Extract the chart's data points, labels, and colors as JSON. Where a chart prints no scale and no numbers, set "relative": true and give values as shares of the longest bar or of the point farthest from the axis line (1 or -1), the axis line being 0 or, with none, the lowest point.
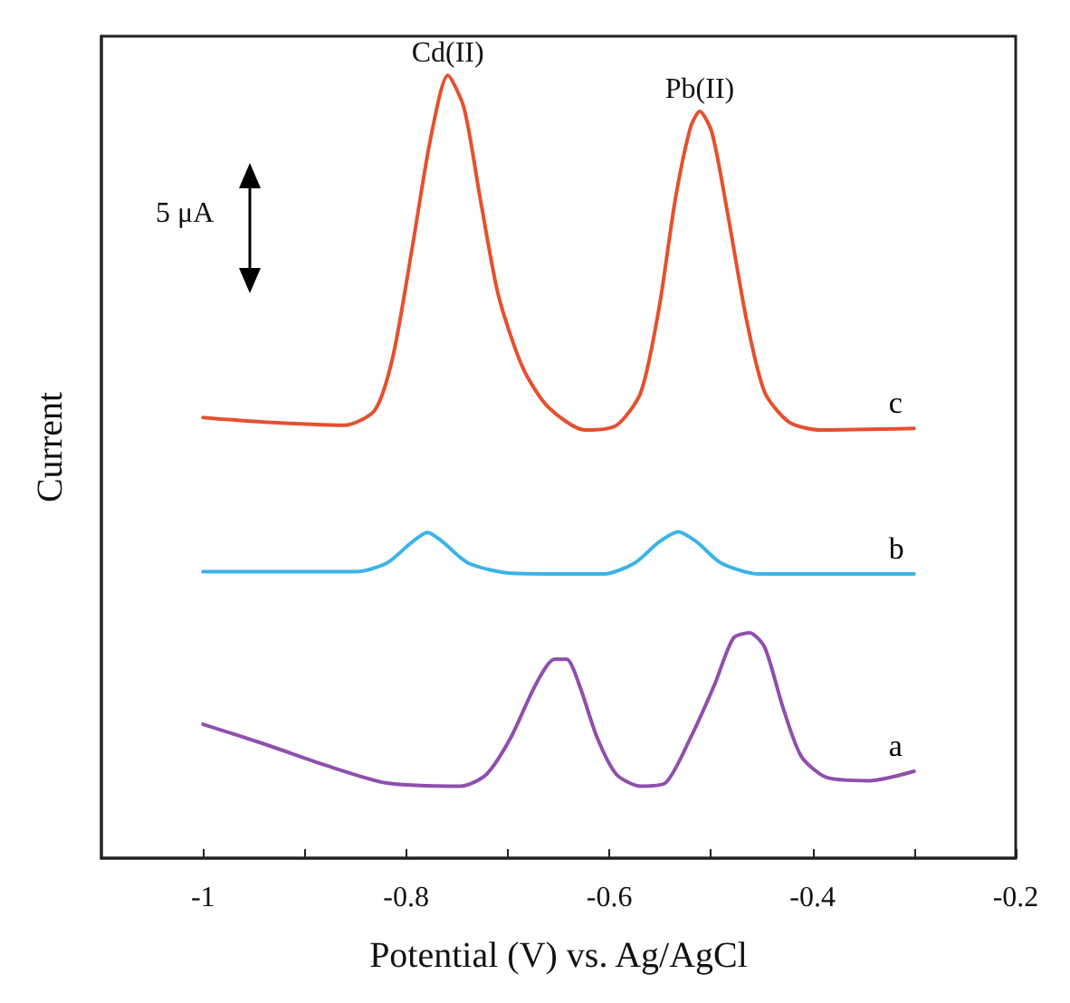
{
  "chart_data": {
    "type": "line",
    "xlabel": "Potential (V) vs. Ag/AgCl",
    "ylabel": "Current",
    "relative": true,
    "tick_labels": "x",
    "grid": false,
    "legend": false,
    "marker": "none",
    "line_style": "solid",
    "xlim": [
      -1.1,
      -0.2
    ],
    "xticks": [
      -1,
      {
        "value": -0.9,
        "label": null
      },
      -0.8,
      {
        "value": -0.7,
        "label": null
      },
      -0.6,
      {
        "value": -0.5,
        "label": null
      },
      -0.4,
      {
        "value": -0.3,
        "label": null
      },
      -0.2
    ],
    "annotations": [
      {
        "text": "Cd(II)",
        "x": -0.759,
        "y": 1.0
      },
      {
        "text": "Pb(II)",
        "x": -0.511,
        "y": 0.954
      },
      "5 μA"
    ],
    "series": [
      {
        "name": "c",
        "color": "#e5502e",
        "x": [
          -1.0,
          -0.94,
          -0.861,
          -0.831,
          -0.813,
          -0.794,
          -0.776,
          -0.759,
          -0.743,
          -0.727,
          -0.709,
          -0.685,
          -0.66,
          -0.624,
          -0.593,
          -0.569,
          -0.551,
          -0.535,
          -0.52,
          -0.511,
          -0.499,
          -0.484,
          -0.465,
          -0.447,
          -0.423,
          -0.392,
          -0.3
        ],
        "values": [
          0.563,
          0.557,
          0.553,
          0.572,
          0.641,
          0.78,
          0.919,
          1.0,
          0.958,
          0.842,
          0.718,
          0.626,
          0.576,
          0.547,
          0.553,
          0.595,
          0.703,
          0.842,
          0.934,
          0.954,
          0.927,
          0.827,
          0.688,
          0.595,
          0.557,
          0.547,
          0.549
        ]
      },
      {
        "name": "b",
        "color": "#3ab4e6",
        "x": [
          -1.0,
          -0.849,
          -0.819,
          -0.794,
          -0.779,
          -0.764,
          -0.739,
          -0.697,
          -0.605,
          -0.575,
          -0.551,
          -0.532,
          -0.514,
          -0.49,
          -0.453,
          -0.3
        ],
        "values": [
          0.366,
          0.366,
          0.377,
          0.404,
          0.416,
          0.404,
          0.377,
          0.364,
          0.363,
          0.377,
          0.404,
          0.417,
          0.404,
          0.377,
          0.363,
          0.363
        ]
      },
      {
        "name": "a",
        "color": "#8e4fae",
        "x": [
          -1.0,
          -0.94,
          -0.88,
          -0.819,
          -0.746,
          -0.721,
          -0.697,
          -0.672,
          -0.654,
          -0.642,
          -0.63,
          -0.612,
          -0.593,
          -0.569,
          -0.545,
          -0.52,
          -0.496,
          -0.478,
          -0.462,
          -0.447,
          -0.429,
          -0.411,
          -0.386,
          -0.344,
          -0.3
        ],
        "values": [
          0.171,
          0.146,
          0.119,
          0.096,
          0.092,
          0.107,
          0.154,
          0.223,
          0.254,
          0.254,
          0.223,
          0.154,
          0.107,
          0.092,
          0.096,
          0.154,
          0.223,
          0.281,
          0.288,
          0.269,
          0.192,
          0.13,
          0.103,
          0.099,
          0.111
        ]
      }
    ]
  }
}
